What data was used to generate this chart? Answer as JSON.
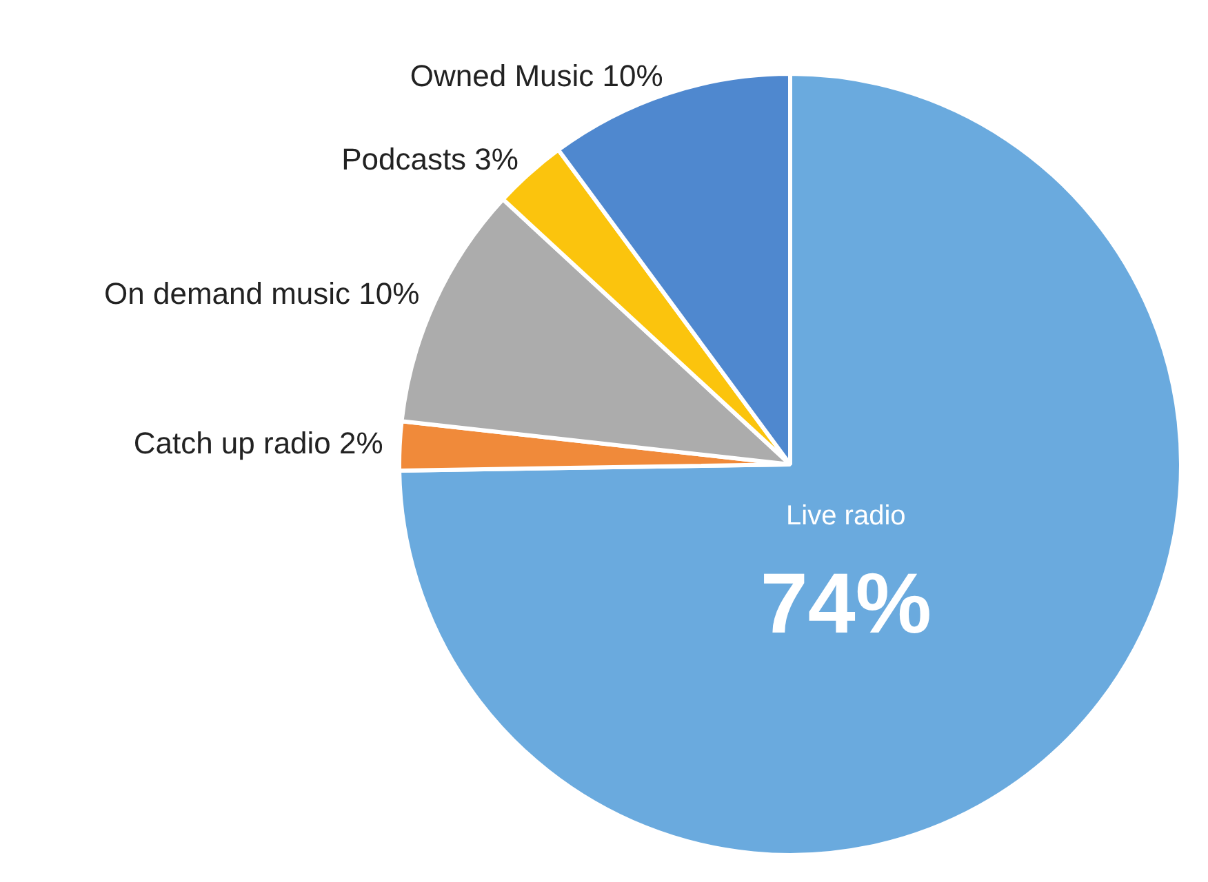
{
  "chart_data": {
    "type": "pie",
    "categories": [
      "Live radio",
      "Catch up radio",
      "On demand music",
      "Podcasts",
      "Owned Music"
    ],
    "values": [
      74,
      2,
      10,
      3,
      10
    ],
    "value_labels": [
      "74%",
      "2%",
      "10%",
      "3%",
      "10%"
    ],
    "colors": [
      "#6aaade",
      "#f08a3a",
      "#acacac",
      "#fbc40d",
      "#4f88cf"
    ],
    "legend": false
  }
}
